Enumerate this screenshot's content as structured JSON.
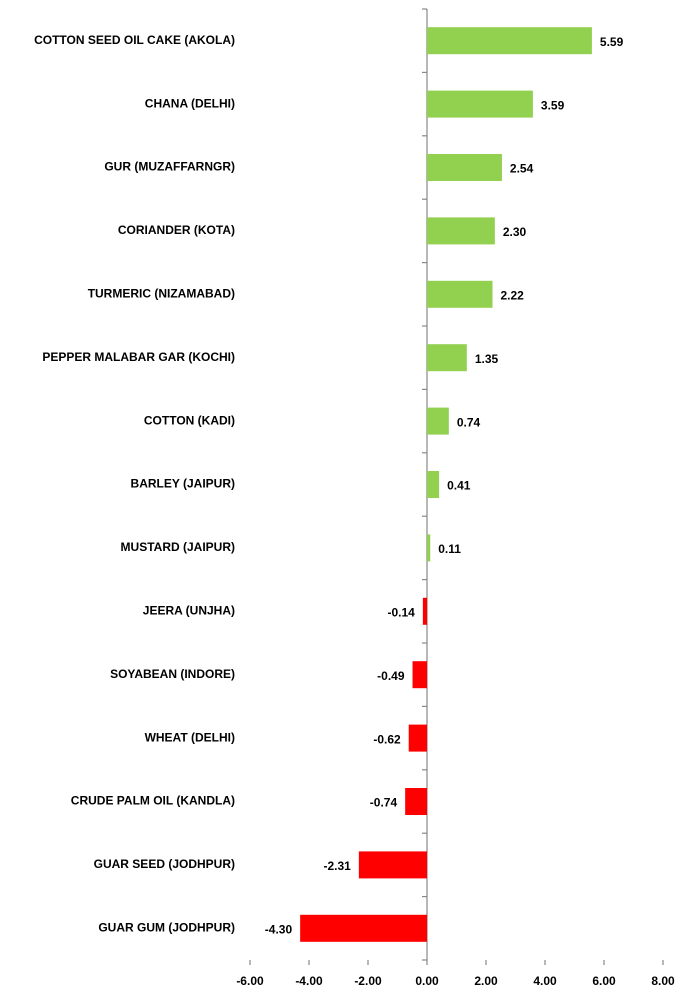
{
  "chart_data": {
    "type": "barh",
    "categories": [
      "COTTON SEED OIL CAKE (AKOLA)",
      "CHANA (DELHI)",
      "GUR (MUZAFFARNGR)",
      "CORIANDER (KOTA)",
      "TURMERIC (NIZAMABAD)",
      "PEPPER MALABAR GAR (KOCHI)",
      "COTTON (KADI)",
      "BARLEY (JAIPUR)",
      "MUSTARD (JAIPUR)",
      "JEERA (UNJHA)",
      "SOYABEAN (INDORE)",
      "WHEAT (DELHI)",
      "CRUDE PALM OIL (KANDLA)",
      "GUAR SEED (JODHPUR)",
      "GUAR GUM (JODHPUR)"
    ],
    "values": [
      5.59,
      3.59,
      2.54,
      2.3,
      2.22,
      1.35,
      0.74,
      0.41,
      0.11,
      -0.14,
      -0.49,
      -0.62,
      -0.74,
      -2.31,
      -4.3
    ],
    "value_labels": [
      "5.59",
      "3.59",
      "2.54",
      "2.30",
      "2.22",
      "1.35",
      "0.74",
      "0.41",
      "0.11",
      "-0.14",
      "-0.49",
      "-0.62",
      "-0.74",
      "-2.31",
      "-4.30"
    ],
    "color_positive": "#92d050",
    "color_negative": "#ff0000",
    "xlim": [
      -6,
      8
    ],
    "xticks": [
      {
        "value": -6,
        "label": "-6.00"
      },
      {
        "value": -4,
        "label": "-4.00"
      },
      {
        "value": -2,
        "label": "-2.00"
      },
      {
        "value": 0,
        "label": "0.00"
      },
      {
        "value": 2,
        "label": "2.00"
      },
      {
        "value": 4,
        "label": "4.00"
      },
      {
        "value": 6,
        "label": "6.00"
      },
      {
        "value": 8,
        "label": "8.00"
      }
    ]
  }
}
